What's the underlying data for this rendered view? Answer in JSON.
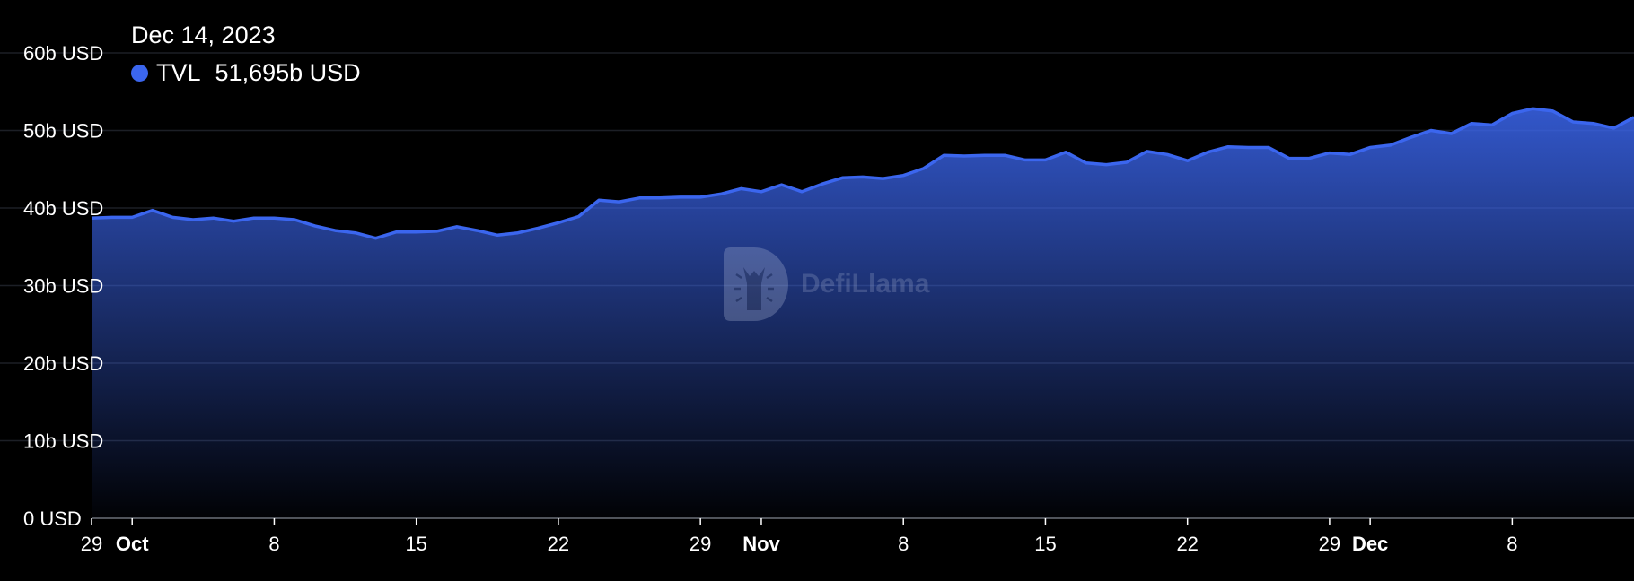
{
  "chart_data": {
    "type": "area",
    "x_start": "2023-09-29",
    "x_end": "2023-12-14",
    "series": [
      {
        "name": "TVL",
        "color": "#3b66ee",
        "values": [
          38.7,
          38.8,
          38.8,
          39.7,
          38.8,
          38.5,
          38.7,
          38.3,
          38.7,
          38.7,
          38.5,
          37.7,
          37.1,
          36.8,
          36.1,
          36.9,
          36.9,
          37.0,
          37.6,
          37.1,
          36.5,
          36.8,
          37.4,
          38.1,
          38.9,
          41.0,
          40.8,
          41.3,
          41.3,
          41.4,
          41.4,
          41.8,
          42.5,
          42.1,
          43.0,
          42.1,
          43.1,
          43.9,
          44.0,
          43.8,
          44.2,
          45.1,
          46.8,
          46.7,
          46.8,
          46.8,
          46.2,
          46.2,
          47.2,
          45.8,
          45.6,
          45.9,
          47.3,
          46.9,
          46.1,
          47.2,
          47.9,
          47.8,
          47.8,
          46.4,
          46.4,
          47.1,
          46.9,
          47.8,
          48.1,
          49.1,
          50.0,
          49.6,
          50.9,
          50.7,
          52.2,
          52.8,
          52.5,
          51.1,
          50.9,
          50.3,
          51.7
        ]
      }
    ],
    "ylim": [
      0,
      60
    ],
    "y_ticks": [
      0,
      10,
      20,
      30,
      40,
      50,
      60
    ],
    "y_tick_labels": [
      "0 USD",
      "10b USD",
      "20b USD",
      "30b USD",
      "40b USD",
      "50b USD",
      "60b USD"
    ],
    "x_ticks": [
      {
        "date": "2023-09-29",
        "label": "29",
        "month": false
      },
      {
        "date": "2023-10-01",
        "label": "Oct",
        "month": true
      },
      {
        "date": "2023-10-08",
        "label": "8",
        "month": false
      },
      {
        "date": "2023-10-15",
        "label": "15",
        "month": false
      },
      {
        "date": "2023-10-22",
        "label": "22",
        "month": false
      },
      {
        "date": "2023-10-29",
        "label": "29",
        "month": false
      },
      {
        "date": "2023-11-01",
        "label": "Nov",
        "month": true
      },
      {
        "date": "2023-11-08",
        "label": "8",
        "month": false
      },
      {
        "date": "2023-11-15",
        "label": "15",
        "month": false
      },
      {
        "date": "2023-11-22",
        "label": "22",
        "month": false
      },
      {
        "date": "2023-11-29",
        "label": "29",
        "month": false
      },
      {
        "date": "2023-12-01",
        "label": "Dec",
        "month": true
      },
      {
        "date": "2023-12-08",
        "label": "8",
        "month": false
      }
    ],
    "grid": true,
    "tooltip": {
      "date": "Dec 14, 2023",
      "series_label": "TVL",
      "value": "51,695b USD"
    }
  },
  "watermark": {
    "text": "DefiLlama",
    "icon": "llama-logo-icon"
  },
  "colors": {
    "background": "#000000",
    "line": "#3b66ee",
    "grid": "#1c1f26"
  }
}
